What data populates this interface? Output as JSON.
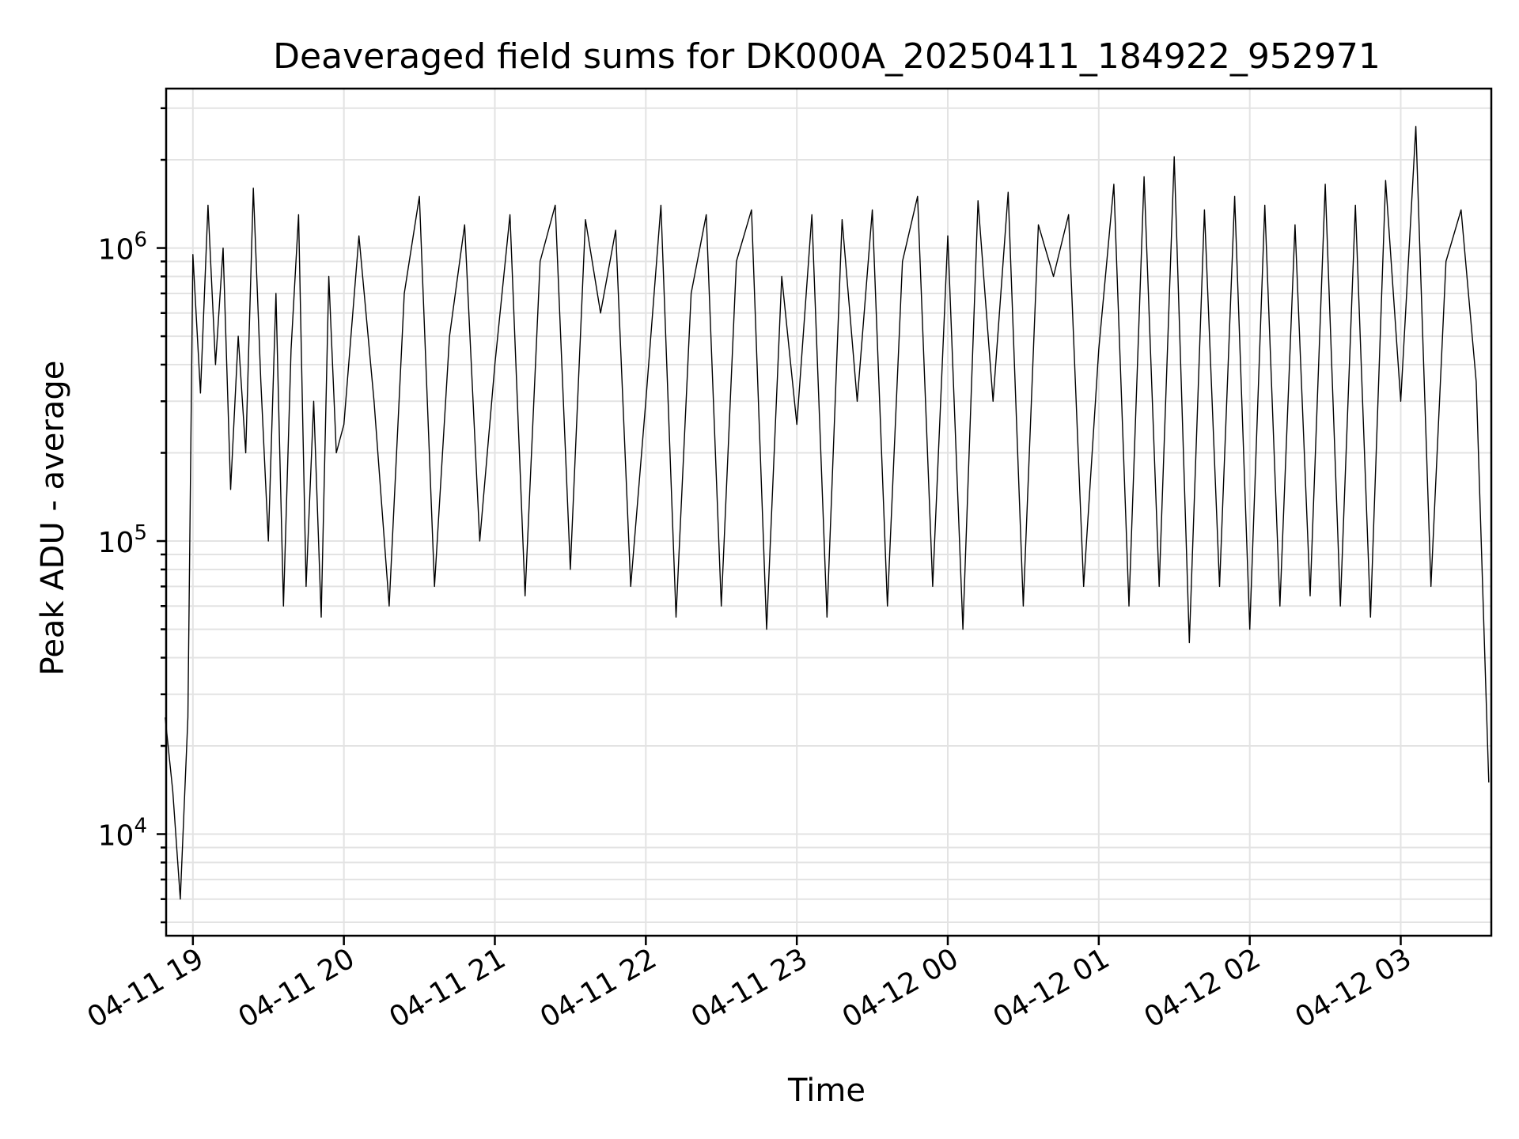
{
  "chart_data": {
    "type": "line",
    "title": "Deaveraged field sums for DK000A_20250411_184922_952971",
    "xlabel": "Time",
    "ylabel": "Peak ADU - average",
    "yscale": "log",
    "ylim": [
      4500,
      3500000
    ],
    "xlim": [
      "2025-04-11 18:49:22",
      "2025-04-12 03:36:00"
    ],
    "grid": true,
    "legend": "none",
    "line_color": "#000000",
    "x_tick_labels": [
      "04-11 19",
      "04-11 20",
      "04-11 21",
      "04-11 22",
      "04-11 23",
      "04-12 00",
      "04-12 01",
      "04-12 02",
      "04-12 03"
    ],
    "x_tick_times": [
      "2025-04-11 19:00",
      "2025-04-11 20:00",
      "2025-04-11 21:00",
      "2025-04-11 22:00",
      "2025-04-11 23:00",
      "2025-04-12 00:00",
      "2025-04-12 01:00",
      "2025-04-12 02:00",
      "2025-04-12 03:00"
    ],
    "y_tick_labels": [
      {
        "value": 10000,
        "base": "10",
        "exp": "4"
      },
      {
        "value": 100000,
        "base": "10",
        "exp": "5"
      },
      {
        "value": 1000000,
        "base": "10",
        "exp": "6"
      }
    ],
    "series": [
      {
        "x": [
          "2025-04-11 18:49",
          "2025-04-11 18:52",
          "2025-04-11 18:55",
          "2025-04-11 18:58",
          "2025-04-11 19:00",
          "2025-04-11 19:03",
          "2025-04-11 19:06",
          "2025-04-11 19:09",
          "2025-04-11 19:12",
          "2025-04-11 19:15",
          "2025-04-11 19:18",
          "2025-04-11 19:21",
          "2025-04-11 19:24",
          "2025-04-11 19:27",
          "2025-04-11 19:30",
          "2025-04-11 19:33",
          "2025-04-11 19:36",
          "2025-04-11 19:39",
          "2025-04-11 19:42",
          "2025-04-11 19:45",
          "2025-04-11 19:48",
          "2025-04-11 19:51",
          "2025-04-11 19:54",
          "2025-04-11 19:57",
          "2025-04-11 20:00",
          "2025-04-11 20:06",
          "2025-04-11 20:12",
          "2025-04-11 20:18",
          "2025-04-11 20:24",
          "2025-04-11 20:30",
          "2025-04-11 20:36",
          "2025-04-11 20:42",
          "2025-04-11 20:48",
          "2025-04-11 20:54",
          "2025-04-11 21:00",
          "2025-04-11 21:06",
          "2025-04-11 21:12",
          "2025-04-11 21:18",
          "2025-04-11 21:24",
          "2025-04-11 21:30",
          "2025-04-11 21:36",
          "2025-04-11 21:42",
          "2025-04-11 21:48",
          "2025-04-11 21:54",
          "2025-04-11 22:00",
          "2025-04-11 22:06",
          "2025-04-11 22:12",
          "2025-04-11 22:18",
          "2025-04-11 22:24",
          "2025-04-11 22:30",
          "2025-04-11 22:36",
          "2025-04-11 22:42",
          "2025-04-11 22:48",
          "2025-04-11 22:54",
          "2025-04-11 23:00",
          "2025-04-11 23:06",
          "2025-04-11 23:12",
          "2025-04-11 23:18",
          "2025-04-11 23:24",
          "2025-04-11 23:30",
          "2025-04-11 23:36",
          "2025-04-11 23:42",
          "2025-04-11 23:48",
          "2025-04-11 23:54",
          "2025-04-12 00:00",
          "2025-04-12 00:06",
          "2025-04-12 00:12",
          "2025-04-12 00:18",
          "2025-04-12 00:24",
          "2025-04-12 00:30",
          "2025-04-12 00:36",
          "2025-04-12 00:42",
          "2025-04-12 00:48",
          "2025-04-12 00:54",
          "2025-04-12 01:00",
          "2025-04-12 01:06",
          "2025-04-12 01:12",
          "2025-04-12 01:18",
          "2025-04-12 01:24",
          "2025-04-12 01:30",
          "2025-04-12 01:36",
          "2025-04-12 01:42",
          "2025-04-12 01:48",
          "2025-04-12 01:54",
          "2025-04-12 02:00",
          "2025-04-12 02:06",
          "2025-04-12 02:12",
          "2025-04-12 02:18",
          "2025-04-12 02:24",
          "2025-04-12 02:30",
          "2025-04-12 02:36",
          "2025-04-12 02:42",
          "2025-04-12 02:48",
          "2025-04-12 02:54",
          "2025-04-12 03:00",
          "2025-04-12 03:06",
          "2025-04-12 03:12",
          "2025-04-12 03:18",
          "2025-04-12 03:24",
          "2025-04-12 03:30",
          "2025-04-12 03:35"
        ],
        "y": [
          25000,
          14000,
          6000,
          25000,
          950000,
          320000,
          1400000,
          400000,
          1000000,
          150000,
          500000,
          200000,
          1600000,
          350000,
          100000,
          700000,
          60000,
          450000,
          1300000,
          70000,
          300000,
          55000,
          800000,
          200000,
          250000,
          1100000,
          300000,
          60000,
          700000,
          1500000,
          70000,
          500000,
          1200000,
          100000,
          400000,
          1300000,
          65000,
          900000,
          1400000,
          80000,
          1250000,
          600000,
          1150000,
          70000,
          300000,
          1400000,
          55000,
          700000,
          1300000,
          60000,
          900000,
          1350000,
          50000,
          800000,
          250000,
          1300000,
          55000,
          1250000,
          300000,
          1350000,
          60000,
          900000,
          1500000,
          70000,
          1100000,
          50000,
          1450000,
          300000,
          1550000,
          60000,
          1200000,
          800000,
          1300000,
          70000,
          450000,
          1650000,
          60000,
          1750000,
          70000,
          2050000,
          45000,
          1350000,
          70000,
          1500000,
          50000,
          1400000,
          60000,
          1200000,
          65000,
          1650000,
          60000,
          1400000,
          55000,
          1700000,
          300000,
          2600000,
          70000,
          900000,
          1350000,
          350000,
          15000
        ]
      }
    ]
  }
}
